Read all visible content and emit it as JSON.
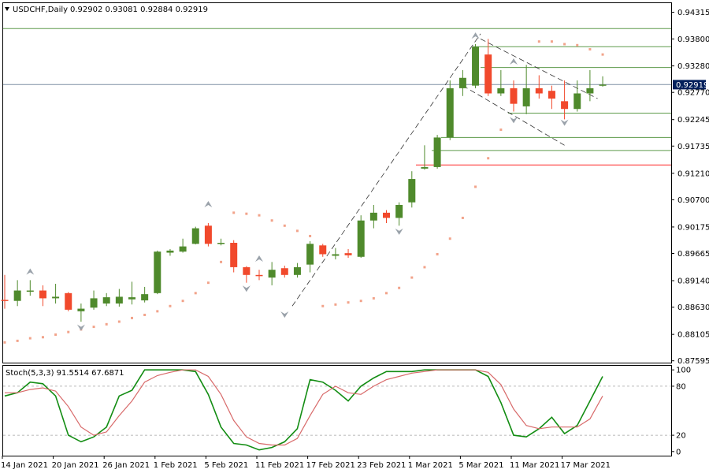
{
  "header": {
    "symbol": "USDCHF,Daily",
    "ohlc": "0.92902 0.93081 0.92884 0.92919",
    "menu_icon": "triangle-down-icon"
  },
  "stoch_header": {
    "label": "Stoch(5,3,3) 91.5514 67.6871"
  },
  "colors": {
    "bull": "#4f8a2c",
    "bear": "#f1492c",
    "psar": "#f2a38a",
    "hline": "#5d9a4a",
    "support_line": "#ff2a2a",
    "current_line": "#7e8fa3",
    "stoch_main": "#138d13",
    "stoch_signal": "#d86a6a",
    "fractal": "#9aa2aa"
  },
  "chart_data": [
    {
      "type": "candlestick",
      "title": "USDCHF,Daily",
      "ylim": [
        0.8756,
        0.9449
      ],
      "y_ticks": [
        "0.94315",
        "0.93800",
        "0.93280",
        "0.92770",
        "0.92245",
        "0.91735",
        "0.91210",
        "0.90700",
        "0.90175",
        "0.89665",
        "0.89140",
        "0.88630",
        "0.88105",
        "0.87595"
      ],
      "current_price": "0.92919",
      "x_tick_labels": [
        "14 Jan 2021",
        "20 Jan 2021",
        "26 Jan 2021",
        "1 Feb 2021",
        "5 Feb 2021",
        "11 Feb 2021",
        "17 Feb 2021",
        "23 Feb 2021",
        "1 Mar 2021",
        "5 Mar 2021",
        "11 Mar 2021",
        "17 Mar 2021"
      ],
      "candles": [
        {
          "o": 0.8877,
          "h": 0.8925,
          "l": 0.886,
          "c": 0.8875
        },
        {
          "o": 0.8875,
          "h": 0.8915,
          "l": 0.8865,
          "c": 0.8895
        },
        {
          "o": 0.8895,
          "h": 0.8915,
          "l": 0.8885,
          "c": 0.8895
        },
        {
          "o": 0.8895,
          "h": 0.8905,
          "l": 0.8865,
          "c": 0.888
        },
        {
          "o": 0.888,
          "h": 0.8908,
          "l": 0.887,
          "c": 0.8883
        },
        {
          "o": 0.889,
          "h": 0.8892,
          "l": 0.8855,
          "c": 0.8858
        },
        {
          "o": 0.8855,
          "h": 0.887,
          "l": 0.8835,
          "c": 0.886
        },
        {
          "o": 0.8862,
          "h": 0.8895,
          "l": 0.8858,
          "c": 0.888
        },
        {
          "o": 0.887,
          "h": 0.889,
          "l": 0.8865,
          "c": 0.8882
        },
        {
          "o": 0.887,
          "h": 0.8898,
          "l": 0.8864,
          "c": 0.8883
        },
        {
          "o": 0.8878,
          "h": 0.8912,
          "l": 0.8868,
          "c": 0.8882
        },
        {
          "o": 0.8876,
          "h": 0.8902,
          "l": 0.8872,
          "c": 0.8888
        },
        {
          "o": 0.889,
          "h": 0.8972,
          "l": 0.8888,
          "c": 0.897
        },
        {
          "o": 0.8968,
          "h": 0.8975,
          "l": 0.8962,
          "c": 0.8972
        },
        {
          "o": 0.897,
          "h": 0.8995,
          "l": 0.8968,
          "c": 0.898
        },
        {
          "o": 0.8985,
          "h": 0.9018,
          "l": 0.8984,
          "c": 0.9015
        },
        {
          "o": 0.902,
          "h": 0.9025,
          "l": 0.898,
          "c": 0.8985
        },
        {
          "o": 0.8985,
          "h": 0.8995,
          "l": 0.8982,
          "c": 0.8987
        },
        {
          "o": 0.8987,
          "h": 0.8992,
          "l": 0.893,
          "c": 0.894
        },
        {
          "o": 0.894,
          "h": 0.8942,
          "l": 0.891,
          "c": 0.8925
        },
        {
          "o": 0.8925,
          "h": 0.8935,
          "l": 0.8915,
          "c": 0.8923
        },
        {
          "o": 0.892,
          "h": 0.895,
          "l": 0.8905,
          "c": 0.8935
        },
        {
          "o": 0.8938,
          "h": 0.8943,
          "l": 0.892,
          "c": 0.8925
        },
        {
          "o": 0.8925,
          "h": 0.8948,
          "l": 0.892,
          "c": 0.894
        },
        {
          "o": 0.8945,
          "h": 0.899,
          "l": 0.893,
          "c": 0.8985
        },
        {
          "o": 0.8982,
          "h": 0.8985,
          "l": 0.896,
          "c": 0.8965
        },
        {
          "o": 0.8962,
          "h": 0.8977,
          "l": 0.8955,
          "c": 0.8965
        },
        {
          "o": 0.8967,
          "h": 0.8975,
          "l": 0.8958,
          "c": 0.8963
        },
        {
          "o": 0.896,
          "h": 0.904,
          "l": 0.8958,
          "c": 0.903
        },
        {
          "o": 0.903,
          "h": 0.906,
          "l": 0.9015,
          "c": 0.9045
        },
        {
          "o": 0.9045,
          "h": 0.905,
          "l": 0.9025,
          "c": 0.9035
        },
        {
          "o": 0.9035,
          "h": 0.9065,
          "l": 0.902,
          "c": 0.906
        },
        {
          "o": 0.9065,
          "h": 0.9125,
          "l": 0.9055,
          "c": 0.911
        },
        {
          "o": 0.913,
          "h": 0.9175,
          "l": 0.9128,
          "c": 0.9133
        },
        {
          "o": 0.9133,
          "h": 0.9195,
          "l": 0.913,
          "c": 0.919
        },
        {
          "o": 0.919,
          "h": 0.93,
          "l": 0.9185,
          "c": 0.9285
        },
        {
          "o": 0.9285,
          "h": 0.932,
          "l": 0.927,
          "c": 0.9305
        },
        {
          "o": 0.929,
          "h": 0.937,
          "l": 0.9285,
          "c": 0.9365
        },
        {
          "o": 0.935,
          "h": 0.938,
          "l": 0.927,
          "c": 0.9275
        },
        {
          "o": 0.9275,
          "h": 0.932,
          "l": 0.927,
          "c": 0.9285
        },
        {
          "o": 0.9285,
          "h": 0.93,
          "l": 0.924,
          "c": 0.9255
        },
        {
          "o": 0.925,
          "h": 0.933,
          "l": 0.9235,
          "c": 0.9285
        },
        {
          "o": 0.9285,
          "h": 0.931,
          "l": 0.9265,
          "c": 0.9275
        },
        {
          "o": 0.928,
          "h": 0.929,
          "l": 0.9245,
          "c": 0.9265
        },
        {
          "o": 0.926,
          "h": 0.93,
          "l": 0.9225,
          "c": 0.9245
        },
        {
          "o": 0.9245,
          "h": 0.93,
          "l": 0.924,
          "c": 0.9275
        },
        {
          "o": 0.9275,
          "h": 0.932,
          "l": 0.926,
          "c": 0.9285
        },
        {
          "o": 0.929,
          "h": 0.9308,
          "l": 0.9288,
          "c": 0.9292
        }
      ],
      "psar": [
        0.8795,
        0.8798,
        0.8803,
        0.8805,
        0.881,
        0.8815,
        0.882,
        0.8825,
        0.883,
        0.8835,
        0.8842,
        0.8848,
        0.8855,
        0.8865,
        0.8875,
        0.889,
        0.891,
        0.895,
        0.9045,
        0.9043,
        0.904,
        0.903,
        0.902,
        0.901,
        0.9,
        0.8865,
        0.8868,
        0.8872,
        0.8875,
        0.888,
        0.889,
        0.89,
        0.892,
        0.894,
        0.8965,
        0.8995,
        0.9035,
        0.9095,
        0.915,
        0.9205,
        null,
        null,
        0.9375,
        0.9375,
        0.937,
        0.9368,
        0.936,
        0.935
      ],
      "horizontal_levels": [
        0.94,
        0.9365,
        0.9325,
        0.9292,
        0.9237,
        0.919,
        0.9165,
        0.9137
      ],
      "support_level": 0.9137
    },
    {
      "type": "line",
      "title": "Stoch(5,3,3) 91.5514 67.6871",
      "ylim": [
        -5,
        105
      ],
      "y_ticks": [
        "100",
        "80",
        "20",
        "0"
      ],
      "levels": [
        80,
        20
      ],
      "series": [
        {
          "name": "",
          "values": [
            68,
            72,
            85,
            83,
            68,
            20,
            12,
            18,
            30,
            68,
            75,
            100,
            100,
            100,
            100,
            98,
            70,
            30,
            10,
            8,
            2,
            5,
            12,
            28,
            88,
            85,
            75,
            62,
            80,
            90,
            98,
            98,
            98,
            100,
            100,
            100,
            100,
            100,
            92,
            60,
            20,
            18,
            28,
            42,
            22,
            32,
            62,
            92
          ]
        },
        {
          "name": "",
          "values": [
            72,
            72,
            76,
            78,
            74,
            55,
            30,
            20,
            24,
            44,
            62,
            85,
            93,
            97,
            100,
            100,
            92,
            70,
            38,
            18,
            10,
            8,
            8,
            16,
            44,
            70,
            80,
            72,
            70,
            80,
            88,
            92,
            96,
            98,
            100,
            100,
            100,
            100,
            97,
            82,
            52,
            32,
            28,
            30,
            30,
            30,
            40,
            68
          ]
        }
      ]
    }
  ]
}
